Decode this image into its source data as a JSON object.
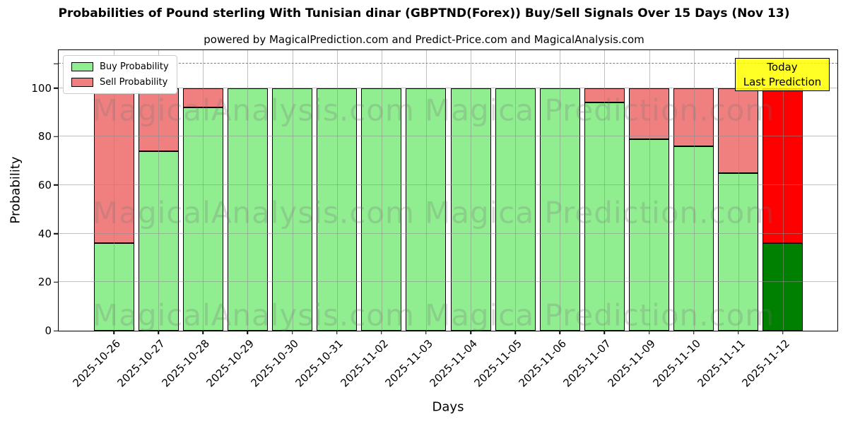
{
  "title": "Probabilities of Pound sterling With Tunisian dinar (GBPTND(Forex)) Buy/Sell Signals Over 15 Days (Nov 13)",
  "subtitle": "powered by MagicalPrediction.com and Predict-Price.com and MagicalAnalysis.com",
  "axes": {
    "x_label": "Days",
    "y_label": "Probability",
    "y_ticks": [
      0,
      20,
      40,
      60,
      80,
      100
    ]
  },
  "legend": {
    "items": [
      {
        "label": "Buy Probability",
        "color": "#90EE90"
      },
      {
        "label": "Sell Probability",
        "color": "#F08080"
      }
    ]
  },
  "annotation": {
    "line1": "Today",
    "line2": "Last Prediction",
    "bg": "#FFFF00"
  },
  "watermarks": {
    "left": "MagicalAnalysis.com",
    "right": "Magica Prediction.com"
  },
  "chart_data": {
    "type": "bar",
    "stacked": true,
    "title": "Probabilities of Pound sterling With Tunisian dinar (GBPTND(Forex)) Buy/Sell Signals Over 15 Days (Nov 13)",
    "xlabel": "Days",
    "ylabel": "Probability",
    "ylim": [
      0,
      115.6
    ],
    "grid": true,
    "legend_position": "upper left",
    "threshold_line": 110,
    "categories": [
      "2025-10-26",
      "2025-10-27",
      "2025-10-28",
      "2025-10-29",
      "2025-10-30",
      "2025-10-31",
      "2025-11-02",
      "2025-11-03",
      "2025-11-04",
      "2025-11-05",
      "2025-11-06",
      "2025-11-07",
      "2025-11-09",
      "2025-11-10",
      "2025-11-11",
      "2025-11-12"
    ],
    "series": [
      {
        "name": "Buy Probability",
        "values": [
          36,
          74,
          92,
          100,
          100,
          100,
          100,
          100,
          100,
          100,
          100,
          94,
          79,
          76,
          65,
          36
        ]
      },
      {
        "name": "Sell Probability",
        "values": [
          64,
          26,
          8,
          0,
          0,
          0,
          0,
          0,
          0,
          0,
          0,
          6,
          21,
          24,
          35,
          64
        ]
      }
    ],
    "colors": {
      "buy": "#90EE90",
      "sell": "#F08080"
    },
    "today_colors": {
      "buy": "#008000",
      "sell": "#FF0000"
    },
    "edge_color": "#000000"
  }
}
